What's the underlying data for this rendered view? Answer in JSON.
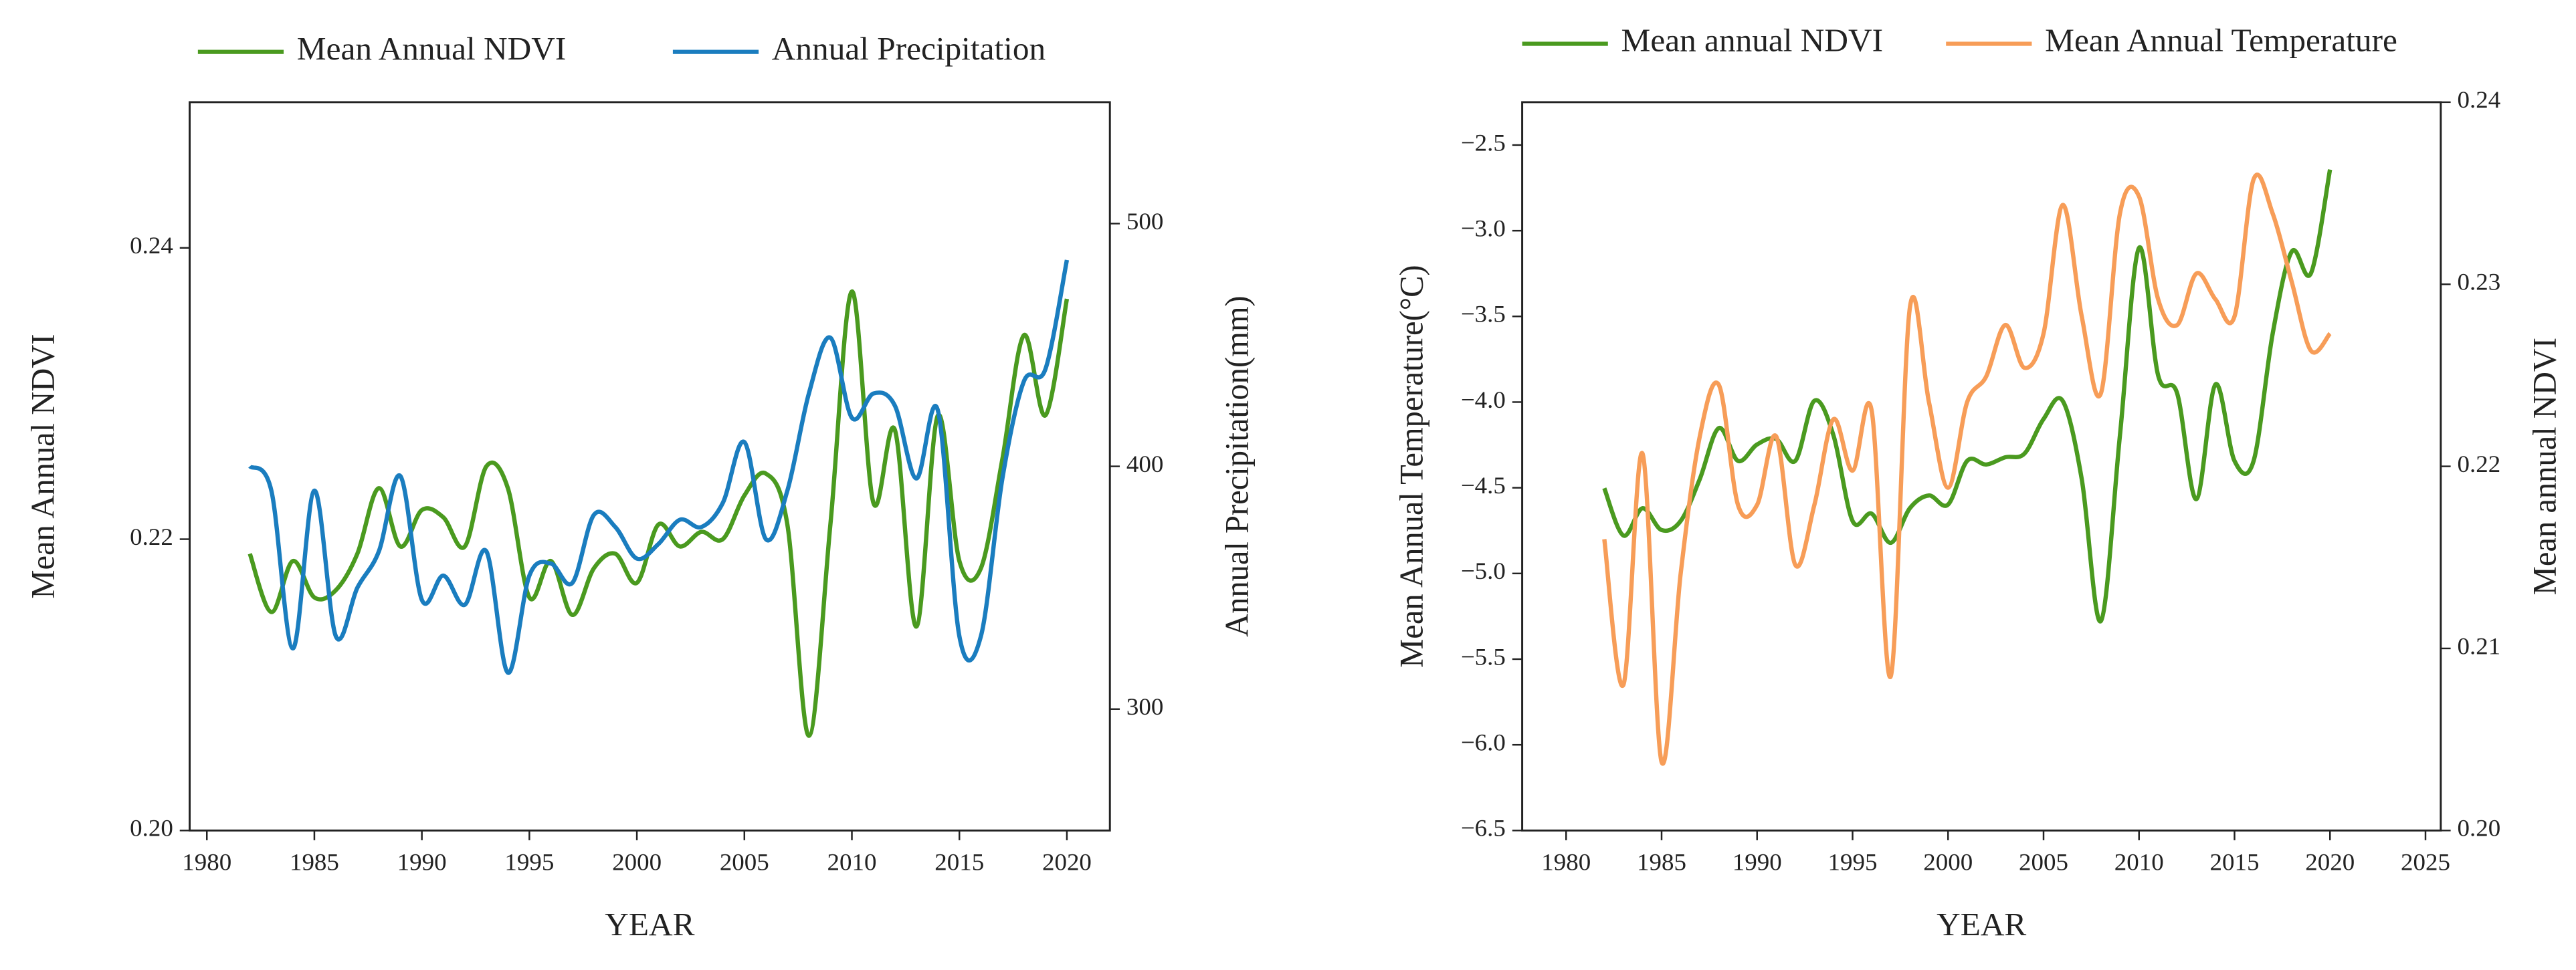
{
  "chart_data": [
    {
      "type": "line",
      "xlabel": "YEAR",
      "ylabel": "Mean Annual NDVI",
      "y2label": "Annual Precipitation(mm)",
      "x": [
        1982,
        1983,
        1984,
        1985,
        1986,
        1987,
        1988,
        1989,
        1990,
        1991,
        1992,
        1993,
        1994,
        1995,
        1996,
        1997,
        1998,
        1999,
        2000,
        2001,
        2002,
        2003,
        2004,
        2005,
        2006,
        2007,
        2008,
        2009,
        2010,
        2011,
        2012,
        2013,
        2014,
        2015,
        2016,
        2017,
        2018,
        2019,
        2020
      ],
      "xlim": [
        1979.2,
        2022
      ],
      "xticks": [
        1980,
        1985,
        1990,
        1995,
        2000,
        2005,
        2010,
        2015,
        2020
      ],
      "ylim": [
        0.2,
        0.25
      ],
      "yticks": [
        {
          "value": 0.2,
          "label": "0.20"
        },
        0.22,
        0.24
      ],
      "y2lim": [
        250,
        550
      ],
      "y2ticks": [
        300,
        400,
        500
      ],
      "series": [
        {
          "name": "Mean Annual NDVI",
          "color": "#4a9a1f",
          "values": [
            0.219,
            0.215,
            0.2185,
            0.216,
            0.2165,
            0.219,
            0.2235,
            0.2195,
            0.222,
            0.2215,
            0.2195,
            0.225,
            0.2235,
            0.216,
            0.2185,
            0.2148,
            0.218,
            0.219,
            0.217,
            0.221,
            0.2195,
            0.2205,
            0.22,
            0.223,
            0.2245,
            0.221,
            0.2065,
            0.221,
            0.237,
            0.2225,
            0.2275,
            0.214,
            0.2285,
            0.2185,
            0.218,
            0.2255,
            0.234,
            0.2285,
            0.2365
          ]
        },
        {
          "name": "Annual Precipitation",
          "color": "#1a7dbf",
          "axis": "y2",
          "values": [
            400,
            390,
            325,
            390,
            330,
            350,
            365,
            396,
            345,
            355,
            343,
            365,
            315,
            355,
            360,
            352,
            380,
            375,
            362,
            368,
            378,
            375,
            385,
            410,
            370,
            390,
            430,
            453,
            420,
            430,
            425,
            395,
            423,
            330,
            330,
            395,
            435,
            440,
            485
          ]
        }
      ]
    },
    {
      "type": "line",
      "xlabel": "YEAR",
      "ylabel": "Mean Annual Temperature(°C)",
      "y2label": "Mean annual NDVI",
      "x": [
        1982,
        1983,
        1984,
        1985,
        1986,
        1987,
        1988,
        1989,
        1990,
        1991,
        1992,
        1993,
        1994,
        1995,
        1996,
        1997,
        1998,
        1999,
        2000,
        2001,
        2002,
        2003,
        2004,
        2005,
        2006,
        2007,
        2008,
        2009,
        2010,
        2011,
        2012,
        2013,
        2014,
        2015,
        2016,
        2017,
        2018,
        2019,
        2020
      ],
      "xlim": [
        1977.7,
        2025.8
      ],
      "xticks": [
        1980,
        1985,
        1990,
        1995,
        2000,
        2005,
        2010,
        2015,
        2020,
        2025
      ],
      "ylim": [
        -6.5,
        -2.25
      ],
      "yticks": [
        {
          "value": -6.5,
          "label": "−6.5"
        },
        {
          "value": -6,
          "label": "−6.0"
        },
        {
          "value": -5.5,
          "label": "−5.5"
        },
        {
          "value": -5,
          "label": "−5.0"
        },
        {
          "value": -4.5,
          "label": "−4.5"
        },
        {
          "value": -4,
          "label": "−4.0"
        },
        {
          "value": -3.5,
          "label": "−3.5"
        },
        {
          "value": -3,
          "label": "−3.0"
        },
        {
          "value": -2.5,
          "label": "−2.5"
        }
      ],
      "y2lim": [
        0.2,
        0.24
      ],
      "y2ticks": [
        {
          "value": 0.2,
          "label": "0.20"
        },
        0.21,
        0.22,
        0.23,
        0.24
      ],
      "series": [
        {
          "name": "Mean annual NDVI",
          "color": "#4a9a1f",
          "axis": "y2",
          "values": [
            0.2188,
            0.2162,
            0.2177,
            0.2165,
            0.217,
            0.2193,
            0.2221,
            0.2203,
            0.2212,
            0.2215,
            0.2203,
            0.2236,
            0.2217,
            0.217,
            0.2174,
            0.2158,
            0.2177,
            0.2184,
            0.2179,
            0.2203,
            0.2201,
            0.2205,
            0.2207,
            0.2226,
            0.2236,
            0.2193,
            0.2115,
            0.2217,
            0.232,
            0.225,
            0.224,
            0.2182,
            0.2245,
            0.2203,
            0.2203,
            0.2273,
            0.2318,
            0.2306,
            0.2363
          ]
        },
        {
          "name": "Mean Annual Temperature",
          "color": "#f79d58",
          "values": [
            -4.8,
            -5.65,
            -4.3,
            -6.1,
            -5.0,
            -4.2,
            -3.9,
            -4.6,
            -4.6,
            -4.2,
            -4.95,
            -4.6,
            -4.1,
            -4.4,
            -4.05,
            -5.6,
            -3.45,
            -4.0,
            -4.5,
            -4.0,
            -3.85,
            -3.55,
            -3.8,
            -3.6,
            -2.85,
            -3.5,
            -3.95,
            -2.9,
            -2.8,
            -3.4,
            -3.55,
            -3.25,
            -3.4,
            -3.5,
            -2.7,
            -2.9,
            -3.3,
            -3.7,
            -3.6
          ]
        }
      ]
    }
  ]
}
